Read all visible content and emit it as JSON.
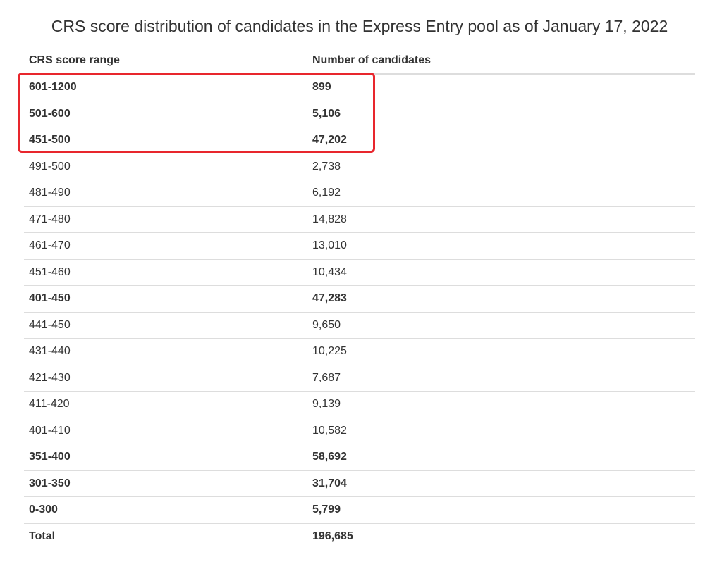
{
  "table": {
    "caption": "CRS score distribution of candidates in the Express Entry pool as of January 17, 2022",
    "headers": {
      "range": "CRS score range",
      "count": "Number of candidates"
    },
    "rows": [
      {
        "range": "601-1200",
        "count": "899",
        "bold": true
      },
      {
        "range": "501-600",
        "count": "5,106",
        "bold": true
      },
      {
        "range": "451-500",
        "count": "47,202",
        "bold": true
      },
      {
        "range": "491-500",
        "count": "2,738",
        "bold": false
      },
      {
        "range": "481-490",
        "count": "6,192",
        "bold": false
      },
      {
        "range": "471-480",
        "count": "14,828",
        "bold": false
      },
      {
        "range": "461-470",
        "count": "13,010",
        "bold": false
      },
      {
        "range": "451-460",
        "count": "10,434",
        "bold": false
      },
      {
        "range": "401-450",
        "count": "47,283",
        "bold": true
      },
      {
        "range": "441-450",
        "count": "9,650",
        "bold": false
      },
      {
        "range": "431-440",
        "count": "10,225",
        "bold": false
      },
      {
        "range": "421-430",
        "count": "7,687",
        "bold": false
      },
      {
        "range": "411-420",
        "count": "9,139",
        "bold": false
      },
      {
        "range": "401-410",
        "count": "10,582",
        "bold": false
      },
      {
        "range": "351-400",
        "count": "58,692",
        "bold": true
      },
      {
        "range": "301-350",
        "count": "31,704",
        "bold": true
      },
      {
        "range": "0-300",
        "count": "5,799",
        "bold": true
      }
    ],
    "total": {
      "range": "Total",
      "count": "196,685"
    }
  },
  "highlight": {
    "color": "#e8262d",
    "rows_covered": [
      "601-1200",
      "501-600",
      "451-500"
    ]
  }
}
